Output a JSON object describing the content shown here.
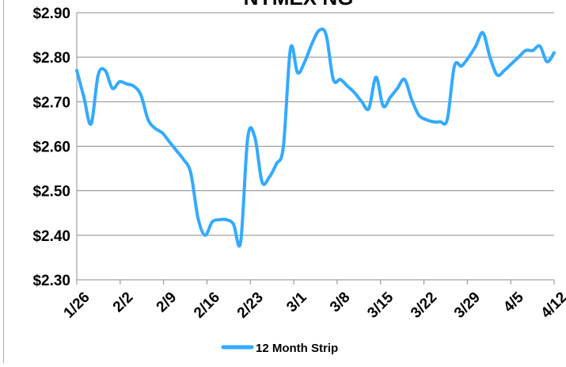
{
  "chart_data": {
    "type": "line",
    "title": "NYMEX NG",
    "xlabel": "",
    "ylabel": "",
    "ylim": [
      2.3,
      2.9
    ],
    "y_ticks": [
      "$2.30",
      "$2.40",
      "$2.50",
      "$2.60",
      "$2.70",
      "$2.80",
      "$2.90"
    ],
    "x_ticks": [
      "1/26",
      "2/2",
      "2/9",
      "2/16",
      "2/23",
      "3/1",
      "3/8",
      "3/15",
      "3/22",
      "3/29",
      "4/5",
      "4/12"
    ],
    "grid": true,
    "legend_position": "bottom",
    "series": [
      {
        "name": "12 Month Strip",
        "color": "#33aaff",
        "points": [
          [
            0,
            2.77
          ],
          [
            1,
            2.71
          ],
          [
            2,
            2.65
          ],
          [
            3,
            2.76
          ],
          [
            4,
            2.77
          ],
          [
            5,
            2.73
          ],
          [
            6,
            2.745
          ],
          [
            7,
            2.74
          ],
          [
            8,
            2.735
          ],
          [
            9,
            2.715
          ],
          [
            10,
            2.66
          ],
          [
            11,
            2.64
          ],
          [
            12,
            2.63
          ],
          [
            13,
            2.61
          ],
          [
            14,
            2.59
          ],
          [
            15,
            2.57
          ],
          [
            16,
            2.54
          ],
          [
            17,
            2.44
          ],
          [
            18,
            2.4
          ],
          [
            19,
            2.43
          ],
          [
            20,
            2.435
          ],
          [
            21,
            2.435
          ],
          [
            22,
            2.425
          ],
          [
            23,
            2.385
          ],
          [
            24,
            2.62
          ],
          [
            25,
            2.62
          ],
          [
            26,
            2.52
          ],
          [
            27,
            2.53
          ],
          [
            28,
            2.56
          ],
          [
            29,
            2.6
          ],
          [
            30,
            2.82
          ],
          [
            31,
            2.765
          ],
          [
            32,
            2.79
          ],
          [
            33,
            2.83
          ],
          [
            34,
            2.86
          ],
          [
            35,
            2.85
          ],
          [
            36,
            2.75
          ],
          [
            37,
            2.75
          ],
          [
            38,
            2.735
          ],
          [
            39,
            2.72
          ],
          [
            40,
            2.7
          ],
          [
            41,
            2.685
          ],
          [
            42,
            2.755
          ],
          [
            43,
            2.69
          ],
          [
            44,
            2.71
          ],
          [
            45,
            2.73
          ],
          [
            46,
            2.75
          ],
          [
            47,
            2.705
          ],
          [
            48,
            2.67
          ],
          [
            49,
            2.66
          ],
          [
            50,
            2.655
          ],
          [
            51,
            2.655
          ],
          [
            52,
            2.66
          ],
          [
            53,
            2.78
          ],
          [
            54,
            2.78
          ],
          [
            55,
            2.8
          ],
          [
            56,
            2.825
          ],
          [
            57,
            2.855
          ],
          [
            58,
            2.8
          ],
          [
            59,
            2.76
          ],
          [
            60,
            2.77
          ],
          [
            61,
            2.785
          ],
          [
            62,
            2.8
          ],
          [
            63,
            2.815
          ],
          [
            64,
            2.815
          ],
          [
            65,
            2.825
          ],
          [
            66,
            2.79
          ],
          [
            67,
            2.81
          ]
        ]
      }
    ]
  }
}
